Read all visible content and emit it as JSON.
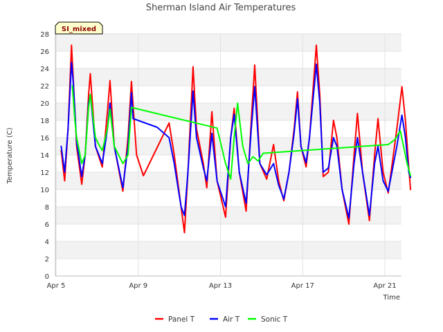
{
  "chart_data": {
    "type": "line",
    "title": "Sherman Island Air Temperatures",
    "badge": "SI_mixed",
    "xlabel": "Time",
    "ylabel": "Temperature (C)",
    "ylim": [
      0,
      28
    ],
    "yticks": [
      0,
      2,
      4,
      6,
      8,
      10,
      12,
      14,
      16,
      18,
      20,
      22,
      24,
      26,
      28
    ],
    "xlim": [
      "Apr 5",
      "Apr 22"
    ],
    "xticks": [
      "Apr 5",
      "Apr 9",
      "Apr 13",
      "Apr 17",
      "Apr 21"
    ],
    "grid": true,
    "legend_position": "bottom",
    "series": [
      {
        "name": "Panel T",
        "color": "#ff0000",
        "points": [
          [
            "Apr 5 06:00",
            14.5
          ],
          [
            "Apr 5 10:00",
            11.0
          ],
          [
            "Apr 5 14:00",
            17.0
          ],
          [
            "Apr 5 18:00",
            26.7
          ],
          [
            "Apr 5 20:00",
            23.0
          ],
          [
            "Apr 6 00:00",
            15.0
          ],
          [
            "Apr 6 06:00",
            10.6
          ],
          [
            "Apr 6 10:00",
            14.0
          ],
          [
            "Apr 6 14:00",
            21.0
          ],
          [
            "Apr 6 16:00",
            23.4
          ],
          [
            "Apr 6 22:00",
            15.0
          ],
          [
            "Apr 7 06:00",
            12.6
          ],
          [
            "Apr 7 12:00",
            19.0
          ],
          [
            "Apr 7 15:00",
            22.6
          ],
          [
            "Apr 7 20:00",
            15.0
          ],
          [
            "Apr 8 06:00",
            9.8
          ],
          [
            "Apr 8 12:00",
            16.0
          ],
          [
            "Apr 8 16:00",
            22.5
          ],
          [
            "Apr 8 22:00",
            14.0
          ],
          [
            "Apr 9 06:00",
            11.6
          ],
          [
            "Apr 10 12:00",
            17.7
          ],
          [
            "Apr 10 18:00",
            14.0
          ],
          [
            "Apr 11 02:00",
            8.0
          ],
          [
            "Apr 11 06:00",
            5.0
          ],
          [
            "Apr 11 10:00",
            12.0
          ],
          [
            "Apr 11 16:00",
            24.2
          ],
          [
            "Apr 11 20:00",
            17.0
          ],
          [
            "Apr 12 04:00",
            13.0
          ],
          [
            "Apr 12 08:00",
            10.2
          ],
          [
            "Apr 12 14:00",
            19.0
          ],
          [
            "Apr 12 20:00",
            11.0
          ],
          [
            "Apr 13 06:00",
            6.8
          ],
          [
            "Apr 13 12:00",
            16.0
          ],
          [
            "Apr 13 16:00",
            19.4
          ],
          [
            "Apr 13 22:00",
            12.0
          ],
          [
            "Apr 14 06:00",
            7.5
          ],
          [
            "Apr 14 12:00",
            18.0
          ],
          [
            "Apr 14 16:00",
            24.4
          ],
          [
            "Apr 14 22:00",
            13.0
          ],
          [
            "Apr 15 06:00",
            11.2
          ],
          [
            "Apr 15 14:00",
            15.2
          ],
          [
            "Apr 15 20:00",
            11.0
          ],
          [
            "Apr 16 02:00",
            8.7
          ],
          [
            "Apr 16 08:00",
            12.0
          ],
          [
            "Apr 16 14:00",
            17.0
          ],
          [
            "Apr 16 18:00",
            21.3
          ],
          [
            "Apr 16 22:00",
            15.0
          ],
          [
            "Apr 17 04:00",
            12.6
          ],
          [
            "Apr 17 08:00",
            16.0
          ],
          [
            "Apr 17 16:00",
            26.7
          ],
          [
            "Apr 17 20:00",
            21.0
          ],
          [
            "Apr 18 00:00",
            11.5
          ],
          [
            "Apr 18 06:00",
            12.0
          ],
          [
            "Apr 18 12:00",
            18.0
          ],
          [
            "Apr 18 16:00",
            16.0
          ],
          [
            "Apr 18 22:00",
            10.0
          ],
          [
            "Apr 19 06:00",
            6.0
          ],
          [
            "Apr 19 12:00",
            14.0
          ],
          [
            "Apr 19 16:00",
            18.8
          ],
          [
            "Apr 19 22:00",
            12.0
          ],
          [
            "Apr 20 06:00",
            6.4
          ],
          [
            "Apr 20 12:00",
            14.0
          ],
          [
            "Apr 20 16:00",
            18.2
          ],
          [
            "Apr 20 22:00",
            12.0
          ],
          [
            "Apr 21 04:00",
            9.6
          ],
          [
            "Apr 21 14:00",
            17.0
          ],
          [
            "Apr 21 20:00",
            21.9
          ],
          [
            "Apr 22 00:00",
            18.0
          ],
          [
            "Apr 22 04:00",
            12.5
          ],
          [
            "Apr 22 06:00",
            10.0
          ]
        ]
      },
      {
        "name": "Air T",
        "color": "#0000ff",
        "points": [
          [
            "Apr 5 06:00",
            15.0
          ],
          [
            "Apr 5 10:00",
            12.0
          ],
          [
            "Apr 5 14:00",
            17.0
          ],
          [
            "Apr 5 18:00",
            24.7
          ],
          [
            "Apr 5 20:00",
            22.5
          ],
          [
            "Apr 6 00:00",
            15.5
          ],
          [
            "Apr 6 06:00",
            11.5
          ],
          [
            "Apr 6 10:00",
            14.0
          ],
          [
            "Apr 6 14:00",
            20.0
          ],
          [
            "Apr 6 16:00",
            21.0
          ],
          [
            "Apr 6 22:00",
            15.0
          ],
          [
            "Apr 7 06:00",
            13.0
          ],
          [
            "Apr 7 12:00",
            17.0
          ],
          [
            "Apr 7 15:00",
            20.0
          ],
          [
            "Apr 7 20:00",
            15.0
          ],
          [
            "Apr 8 06:00",
            10.2
          ],
          [
            "Apr 8 12:00",
            15.0
          ],
          [
            "Apr 8 16:00",
            21.2
          ],
          [
            "Apr 8 18:00",
            18.2
          ],
          [
            "Apr 9 22:00",
            17.2
          ],
          [
            "Apr 10 12:00",
            16.0
          ],
          [
            "Apr 10 18:00",
            13.0
          ],
          [
            "Apr 11 02:00",
            8.0
          ],
          [
            "Apr 11 06:00",
            7.0
          ],
          [
            "Apr 11 10:00",
            12.0
          ],
          [
            "Apr 11 16:00",
            21.4
          ],
          [
            "Apr 11 20:00",
            16.0
          ],
          [
            "Apr 12 04:00",
            12.5
          ],
          [
            "Apr 12 08:00",
            11.0
          ],
          [
            "Apr 12 14:00",
            16.5
          ],
          [
            "Apr 12 20:00",
            11.0
          ],
          [
            "Apr 13 06:00",
            8.0
          ],
          [
            "Apr 13 12:00",
            16.0
          ],
          [
            "Apr 13 16:00",
            18.7
          ],
          [
            "Apr 13 22:00",
            12.0
          ],
          [
            "Apr 14 06:00",
            8.4
          ],
          [
            "Apr 14 12:00",
            17.0
          ],
          [
            "Apr 14 16:00",
            21.9
          ],
          [
            "Apr 14 22:00",
            13.0
          ],
          [
            "Apr 15 06:00",
            11.7
          ],
          [
            "Apr 15 14:00",
            13.0
          ],
          [
            "Apr 15 20:00",
            10.5
          ],
          [
            "Apr 16 02:00",
            8.9
          ],
          [
            "Apr 16 08:00",
            12.0
          ],
          [
            "Apr 16 14:00",
            16.5
          ],
          [
            "Apr 16 18:00",
            20.5
          ],
          [
            "Apr 16 22:00",
            15.0
          ],
          [
            "Apr 17 04:00",
            13.1
          ],
          [
            "Apr 17 08:00",
            16.0
          ],
          [
            "Apr 17 16:00",
            24.5
          ],
          [
            "Apr 17 20:00",
            20.0
          ],
          [
            "Apr 18 00:00",
            12.0
          ],
          [
            "Apr 18 06:00",
            12.5
          ],
          [
            "Apr 18 12:00",
            16.0
          ],
          [
            "Apr 18 16:00",
            15.0
          ],
          [
            "Apr 18 22:00",
            10.0
          ],
          [
            "Apr 19 06:00",
            6.7
          ],
          [
            "Apr 19 12:00",
            13.0
          ],
          [
            "Apr 19 16:00",
            16.0
          ],
          [
            "Apr 19 22:00",
            12.0
          ],
          [
            "Apr 20 06:00",
            7.0
          ],
          [
            "Apr 20 12:00",
            13.0
          ],
          [
            "Apr 20 16:00",
            15.0
          ],
          [
            "Apr 20 22:00",
            11.0
          ],
          [
            "Apr 21 04:00",
            9.8
          ],
          [
            "Apr 21 14:00",
            15.0
          ],
          [
            "Apr 21 20:00",
            18.6
          ],
          [
            "Apr 22 00:00",
            16.0
          ],
          [
            "Apr 22 04:00",
            12.0
          ],
          [
            "Apr 22 06:00",
            11.4
          ]
        ]
      },
      {
        "name": "Sonic T",
        "color": "#00ff00",
        "points": [
          [
            "Apr 5 19:00",
            22.0
          ],
          [
            "Apr 5 22:00",
            18.0
          ],
          [
            "Apr 6 00:00",
            16.0
          ],
          [
            "Apr 6 06:00",
            13.0
          ],
          [
            "Apr 6 10:00",
            14.0
          ],
          [
            "Apr 6 14:00",
            19.5
          ],
          [
            "Apr 6 16:00",
            21.0
          ],
          [
            "Apr 6 22:00",
            16.0
          ],
          [
            "Apr 7 02:00",
            15.2
          ],
          [
            "Apr 7 06:00",
            14.5
          ],
          [
            "Apr 7 12:00",
            17.0
          ],
          [
            "Apr 7 15:00",
            19.3
          ],
          [
            "Apr 7 20:00",
            15.0
          ],
          [
            "Apr 8 06:00",
            13.0
          ],
          [
            "Apr 8 12:00",
            14.0
          ],
          [
            "Apr 8 16:00",
            19.5
          ],
          [
            "Apr 8 20:00",
            19.4
          ],
          [
            "Apr 12 20:00",
            17.1
          ],
          [
            "Apr 13 06:00",
            13.0
          ],
          [
            "Apr 13 12:00",
            11.2
          ],
          [
            "Apr 13 16:00",
            16.0
          ],
          [
            "Apr 13 20:00",
            20.0
          ],
          [
            "Apr 14 02:00",
            15.0
          ],
          [
            "Apr 14 08:00",
            13.0
          ],
          [
            "Apr 14 14:00",
            13.8
          ],
          [
            "Apr 14 20:00",
            13.3
          ],
          [
            "Apr 15 02:00",
            14.2
          ],
          [
            "Apr 21 04:00",
            15.2
          ],
          [
            "Apr 21 12:00",
            15.8
          ],
          [
            "Apr 21 18:00",
            16.8
          ],
          [
            "Apr 22 02:00",
            13.0
          ],
          [
            "Apr 22 06:00",
            11.6
          ]
        ]
      }
    ]
  }
}
